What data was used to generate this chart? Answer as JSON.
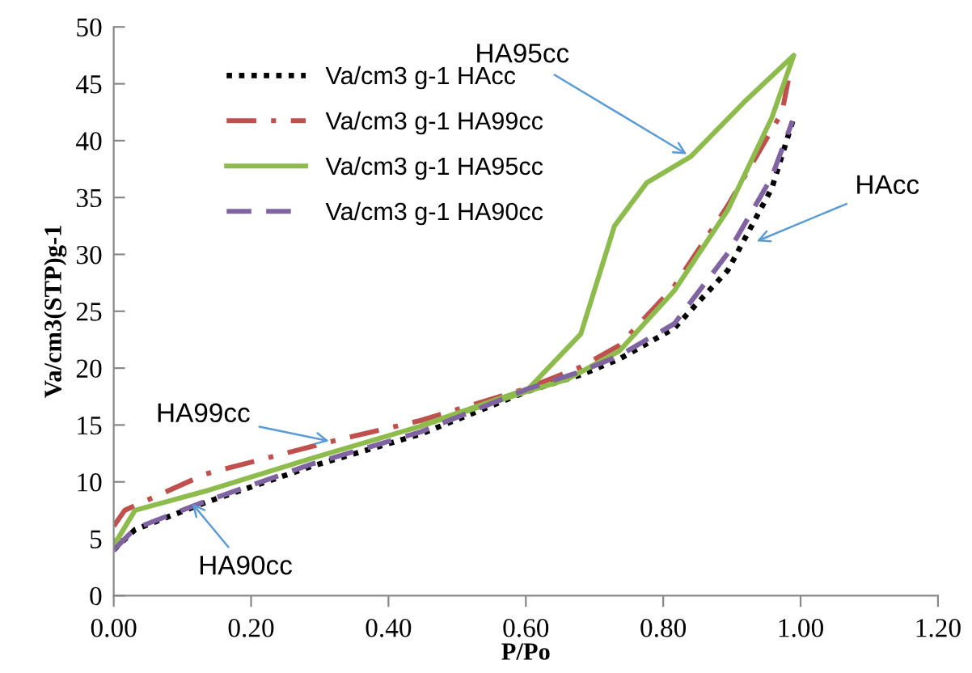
{
  "chart_data": {
    "type": "line",
    "xlabel": "P/Po",
    "ylabel": "Va/cm3(STP)g-1",
    "xlim": [
      0,
      1.2
    ],
    "ylim": [
      0,
      50
    ],
    "xticks": [
      {
        "value": 0,
        "label": "0.00"
      },
      {
        "value": 0.2,
        "label": "0.20"
      },
      {
        "value": 0.4,
        "label": "0.40"
      },
      {
        "value": 0.6,
        "label": "0.60"
      },
      {
        "value": 0.8,
        "label": "0.80"
      },
      {
        "value": 1.0,
        "label": "1.00"
      },
      {
        "value": 1.2,
        "label": "1.20"
      }
    ],
    "yticks": [
      0,
      5,
      10,
      15,
      20,
      25,
      30,
      35,
      40,
      45,
      50
    ],
    "grid": false,
    "legend": "top left",
    "marker": "none",
    "series": [
      {
        "name": "Va/cm3 g-1 HAcc",
        "color": "#000000",
        "line_style": "dotted",
        "x": [
          0,
          0.031,
          0.134,
          0.29,
          0.447,
          0.604,
          0.68,
          0.736,
          0.816,
          0.894,
          0.958,
          0.99
        ],
        "values": [
          4,
          5.8,
          8.2,
          11.4,
          14.2,
          18,
          19.4,
          20.8,
          23.5,
          28.6,
          35.8,
          42
        ]
      },
      {
        "name": "Va/cm3 g-1 HA99cc",
        "color": "#c0504d",
        "line_style": "dashdot",
        "x": [
          0,
          0.016,
          0.134,
          0.313,
          0.447,
          0.6,
          0.68,
          0.736,
          0.816,
          0.894,
          0.973,
          0.982
        ],
        "values": [
          6.1,
          7.5,
          10.7,
          13.5,
          15.4,
          18.2,
          20.1,
          22,
          27.2,
          34.3,
          42.5,
          45.3
        ]
      },
      {
        "name": "Va/cm3 g-1 HA95cc",
        "color": "#8dbb4c",
        "line_style": "solid",
        "x": [
          0,
          0.031,
          0.134,
          0.29,
          0.447,
          0.604,
          0.66,
          0.736,
          0.816,
          0.894,
          0.958,
          0.99,
          0.918,
          0.84,
          0.776,
          0.729,
          0.68,
          0.604,
          0.45
        ],
        "values": [
          4.4,
          7.5,
          9.2,
          12.1,
          14.9,
          18,
          19,
          21.5,
          26.8,
          33.9,
          42,
          47.5,
          43.4,
          38.6,
          36.3,
          32.5,
          23,
          18.2,
          15
        ]
      },
      {
        "name": "Va/cm3 g-1 HA90cc",
        "color": "#8064a2",
        "line_style": "dashed",
        "x": [
          0,
          0.031,
          0.134,
          0.29,
          0.447,
          0.604,
          0.68,
          0.736,
          0.816,
          0.894,
          0.958,
          0.988
        ],
        "values": [
          4,
          5.9,
          8.3,
          11.6,
          14.4,
          18.2,
          19.7,
          21.1,
          23.9,
          30.1,
          36.8,
          41.7
        ]
      }
    ],
    "annotations": [
      {
        "text": "HA95cc",
        "x": 0.84,
        "y": 38.6
      },
      {
        "text": "HAcc",
        "x": 0.93,
        "y": 31
      },
      {
        "text": "HA99cc",
        "x": 0.32,
        "y": 13.5
      },
      {
        "text": "HA90cc",
        "x": 0.11,
        "y": 8.4
      }
    ]
  }
}
